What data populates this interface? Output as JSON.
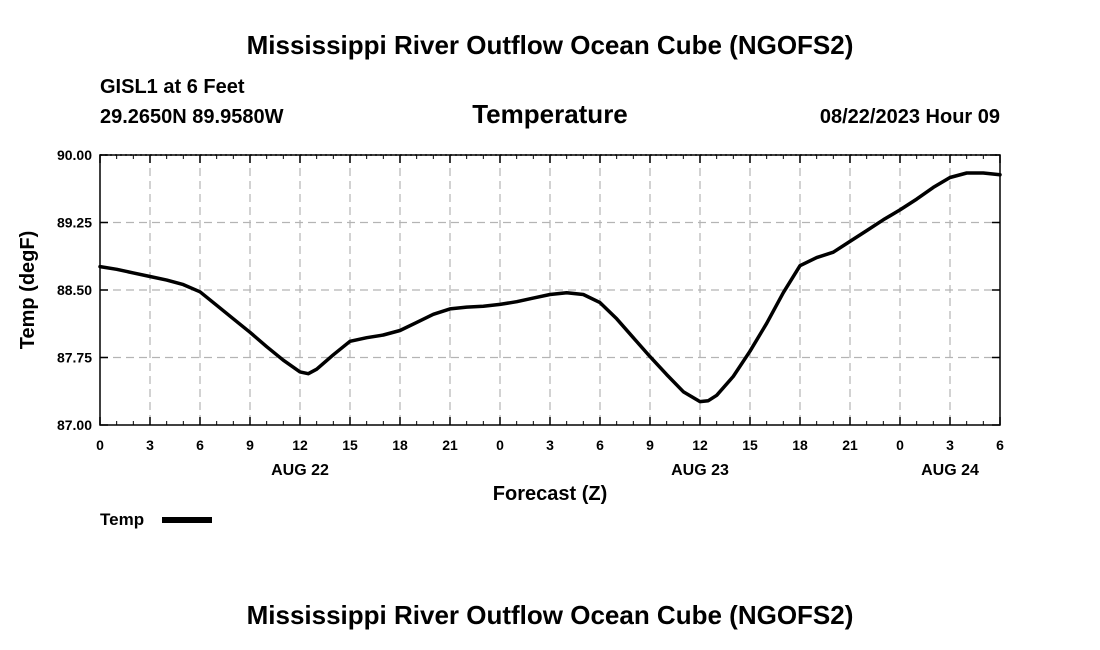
{
  "page": {
    "title_top": "Mississippi River Outflow Ocean Cube (NGOFS2)",
    "title_bottom": "Mississippi River Outflow Ocean Cube (NGOFS2)",
    "station": "GISL1 at 6 Feet",
    "coords": "29.2650N  89.9580W",
    "datetime": "08/22/2023 Hour 09"
  },
  "chart_data": {
    "type": "line",
    "title": "Temperature",
    "xlabel": "Forecast (Z)",
    "ylabel": "Temp (degF)",
    "ylim": [
      87.0,
      90.0
    ],
    "yticks": [
      87.0,
      87.75,
      88.5,
      89.25,
      90.0
    ],
    "ytick_labels": [
      "87.00",
      "87.75",
      "88.50",
      "89.25",
      "90.00"
    ],
    "xlim": [
      0,
      54
    ],
    "xticks": [
      0,
      3,
      6,
      9,
      12,
      15,
      18,
      21,
      24,
      27,
      30,
      33,
      36,
      39,
      42,
      45,
      48,
      51,
      54
    ],
    "xtick_labels": [
      "0",
      "3",
      "6",
      "9",
      "12",
      "15",
      "18",
      "21",
      "0",
      "3",
      "6",
      "9",
      "12",
      "15",
      "18",
      "21",
      "0",
      "3",
      "6"
    ],
    "date_labels": [
      {
        "x": 12,
        "label": "AUG 22"
      },
      {
        "x": 36,
        "label": "AUG 23"
      },
      {
        "x": 51,
        "label": "AUG 24"
      }
    ],
    "grid": true,
    "legend": "bottom-left",
    "series": [
      {
        "name": "Temp",
        "color": "#000000",
        "x": [
          0,
          1,
          2,
          3,
          4,
          5,
          6,
          7,
          8,
          9,
          10,
          11,
          12,
          12.5,
          13,
          14,
          15,
          16,
          17,
          18,
          19,
          20,
          21,
          22,
          23,
          24,
          25,
          26,
          27,
          28,
          29,
          30,
          31,
          32,
          33,
          34,
          35,
          36,
          36.5,
          37,
          38,
          39,
          40,
          41,
          42,
          43,
          44,
          45,
          46,
          47,
          48,
          49,
          50,
          51,
          52,
          53,
          54
        ],
        "values": [
          88.76,
          88.73,
          88.69,
          88.65,
          88.61,
          88.56,
          88.48,
          88.33,
          88.18,
          88.03,
          87.87,
          87.72,
          87.59,
          87.57,
          87.62,
          87.78,
          87.93,
          87.97,
          88.0,
          88.05,
          88.14,
          88.23,
          88.29,
          88.31,
          88.32,
          88.34,
          88.37,
          88.41,
          88.45,
          88.47,
          88.45,
          88.36,
          88.18,
          87.97,
          87.76,
          87.56,
          87.37,
          87.26,
          87.27,
          87.33,
          87.54,
          87.82,
          88.13,
          88.47,
          88.77,
          88.86,
          88.92,
          89.04,
          89.16,
          89.28,
          89.39,
          89.51,
          89.64,
          89.75,
          89.8,
          89.8,
          89.78
        ]
      }
    ]
  }
}
